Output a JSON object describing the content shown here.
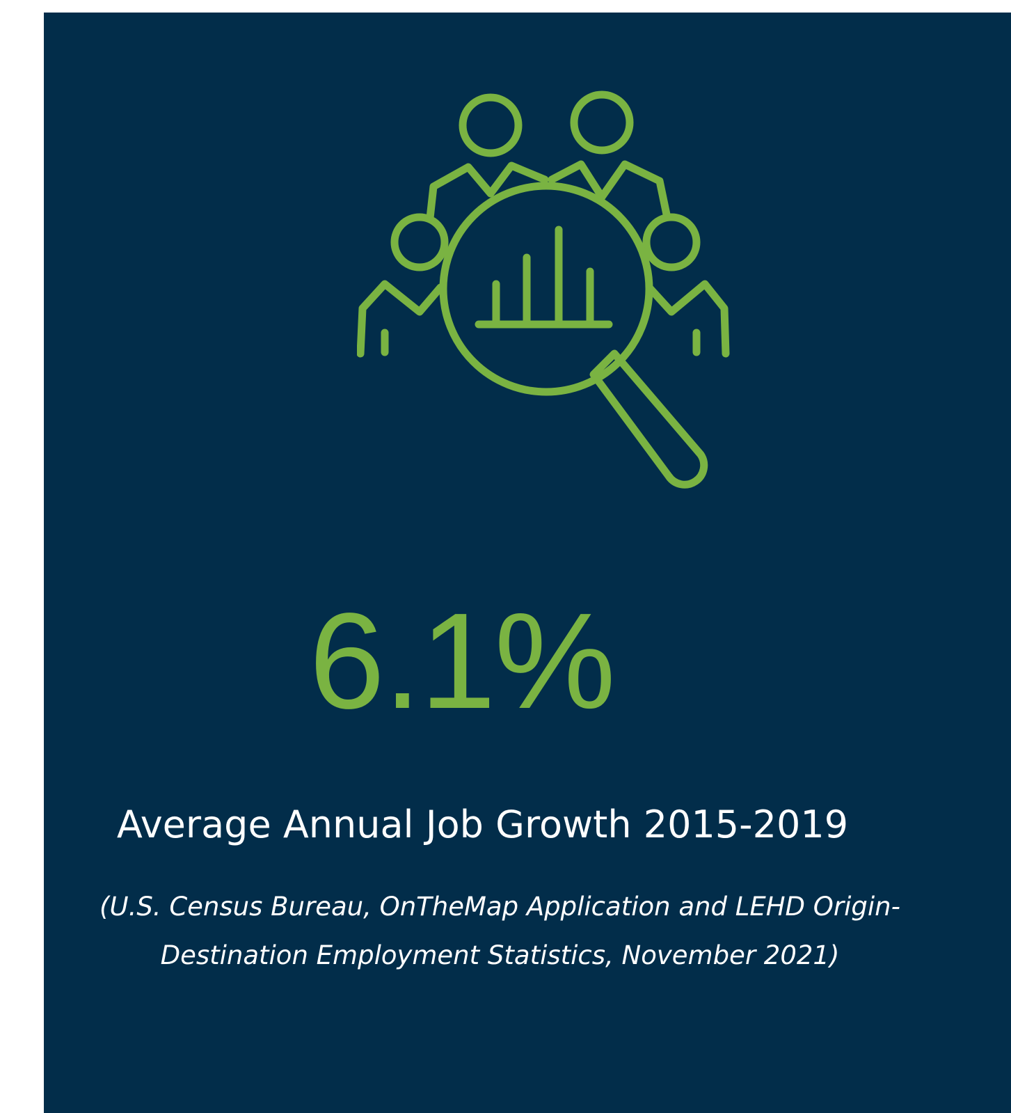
{
  "stat": {
    "value": "6.1%",
    "label": "Average Annual Job Growth 2015-2019",
    "source_line1": "(U.S. Census Bureau, OnTheMap Application and LEHD Origin-",
    "source_line2": "Destination Employment Statistics, November 2021)"
  },
  "icon": {
    "name": "people-magnifier-chart-icon",
    "color": "#7ab342"
  },
  "colors": {
    "background": "#022d4a",
    "accent": "#7ab342",
    "text": "#ffffff"
  }
}
